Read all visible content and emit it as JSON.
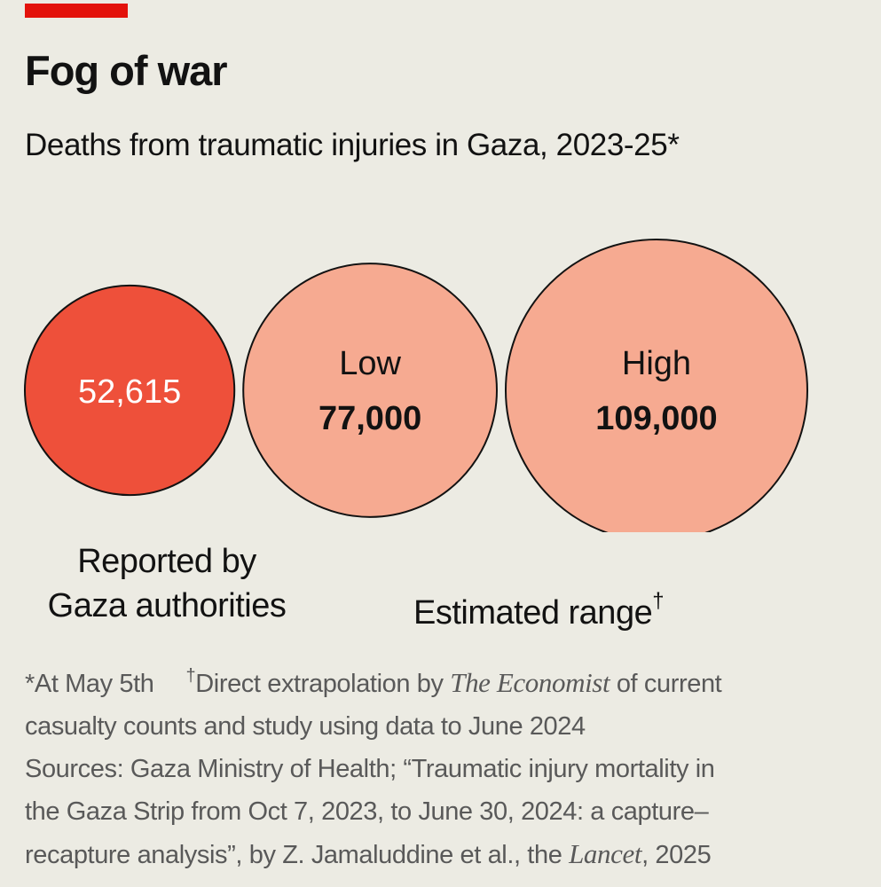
{
  "chart_data": {
    "type": "bubble",
    "title": "Fog of war",
    "subtitle": "Deaths from traumatic injuries in Gaza, 2023-25*",
    "bubbles": [
      {
        "label": "",
        "value": 52615,
        "display": "52,615",
        "color": "#ee503a",
        "group": "reported"
      },
      {
        "label": "Low",
        "value": 77000,
        "display": "77,000",
        "color": "#f6aa91",
        "group": "estimated"
      },
      {
        "label": "High",
        "value": 109000,
        "display": "109,000",
        "color": "#f6aa91",
        "group": "estimated"
      }
    ],
    "group_labels": {
      "reported": "Reported by Gaza authorities",
      "estimated": "Estimated range"
    },
    "group_labels_lines": {
      "reported": [
        "Reported by",
        "Gaza authorities"
      ],
      "estimated_mark": "†"
    },
    "footnotes": {
      "asterisk": "*At May 5th",
      "dagger_mark": "†",
      "dagger_pre": "Direct extrapolation by ",
      "dagger_italic": "The Economist",
      "dagger_post": " of current",
      "dagger_line2": "casualty counts and study using data to June 2024",
      "sources_line1": "Sources: Gaza Ministry of Health; “Traumatic injury mortality in",
      "sources_line2": "the Gaza Strip from Oct 7, 2023, to June 30, 2024: a capture–",
      "sources_line3_pre": "recapture analysis”, by Z. Jamaluddine et al., the ",
      "sources_line3_italic": "Lancet",
      "sources_line3_post": ", 2025"
    },
    "colors": {
      "brand_red": "#e3120b",
      "reported_fill": "#ee503a",
      "estimate_fill": "#f6aa91",
      "outline": "#121212"
    }
  }
}
